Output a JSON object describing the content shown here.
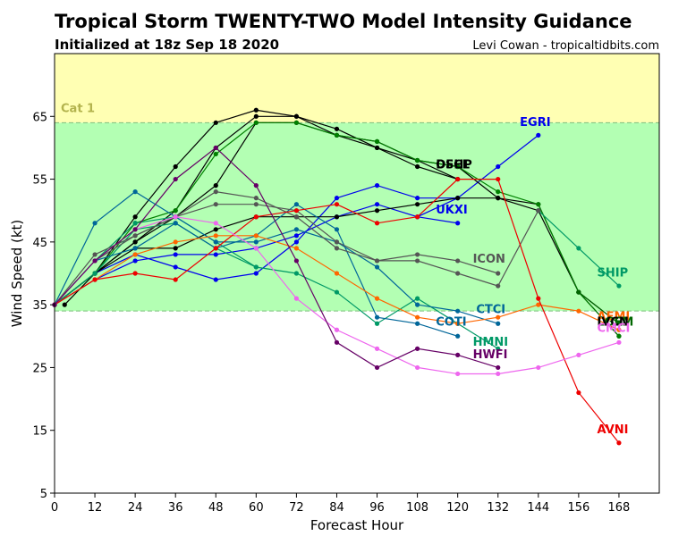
{
  "title": "Tropical Storm TWENTY-TWO Model Intensity Guidance",
  "subtitle": "Initialized at 18z Sep 18 2020",
  "credit": "Levi Cowan - tropicaltidbits.com",
  "chart_data": {
    "type": "line",
    "xlabel": "Forecast Hour",
    "ylabel": "Wind Speed (kt)",
    "xlim": [
      0,
      180
    ],
    "ylim": [
      5,
      75
    ],
    "xticks": [
      0,
      12,
      24,
      36,
      48,
      60,
      72,
      84,
      96,
      108,
      120,
      132,
      144,
      156,
      168
    ],
    "yticks": [
      5,
      15,
      25,
      35,
      45,
      55,
      65
    ],
    "grid": false,
    "bands": [
      {
        "label": "",
        "from": 34,
        "to": 64,
        "color": "#b3ffb3"
      },
      {
        "label": "Cat 1",
        "from": 64,
        "to": 75,
        "color": "#ffffb3"
      }
    ],
    "band_label_color": "#b3b34d",
    "threshold_color": "#7fbf7f",
    "series": [
      {
        "name": "EGRI",
        "color": "#0000ee",
        "label": "EGRI",
        "points": [
          [
            0,
            35
          ],
          [
            12,
            39
          ],
          [
            24,
            42
          ],
          [
            36,
            43
          ],
          [
            48,
            43
          ],
          [
            60,
            44
          ],
          [
            72,
            46
          ],
          [
            84,
            49
          ],
          [
            96,
            51
          ],
          [
            108,
            49
          ],
          [
            120,
            52
          ],
          [
            132,
            57
          ],
          [
            144,
            62
          ]
        ]
      },
      {
        "name": "UKXI",
        "color": "#0000ee",
        "label": "UKXI",
        "points": [
          [
            0,
            35
          ],
          [
            12,
            40
          ],
          [
            24,
            43
          ],
          [
            36,
            41
          ],
          [
            48,
            39
          ],
          [
            60,
            40
          ],
          [
            72,
            45
          ],
          [
            84,
            52
          ],
          [
            96,
            54
          ],
          [
            108,
            52
          ],
          [
            120,
            52
          ]
        ]
      },
      {
        "name": "",
        "color": "#0000ee",
        "label": "",
        "points": [
          [
            108,
            49
          ],
          [
            120,
            48
          ]
        ]
      },
      {
        "name": "OFCL",
        "color": "#000000",
        "label": "OFCL",
        "points": [
          [
            0,
            35
          ],
          [
            12,
            40
          ],
          [
            24,
            45
          ],
          [
            36,
            50
          ],
          [
            48,
            60
          ],
          [
            60,
            65
          ],
          [
            72,
            65
          ],
          [
            84,
            62
          ],
          [
            96,
            60
          ],
          [
            108,
            58
          ],
          [
            120,
            55
          ]
        ]
      },
      {
        "name": "",
        "color": "#000000",
        "label": "",
        "points": [
          [
            0,
            35
          ],
          [
            12,
            40
          ],
          [
            24,
            49
          ],
          [
            36,
            57
          ],
          [
            48,
            64
          ],
          [
            60,
            66
          ],
          [
            72,
            65
          ],
          [
            84,
            63
          ],
          [
            96,
            60
          ],
          [
            108,
            57
          ],
          [
            120,
            55
          ]
        ]
      },
      {
        "name": "",
        "color": "#000000",
        "label": "",
        "points": [
          [
            3,
            35
          ],
          [
            12,
            40
          ],
          [
            24,
            45
          ],
          [
            36,
            49
          ],
          [
            48,
            54
          ],
          [
            60,
            64
          ],
          [
            72,
            64
          ],
          [
            84,
            62
          ],
          [
            96,
            61
          ],
          [
            108,
            58
          ],
          [
            120,
            57
          ],
          [
            132,
            52
          ],
          [
            144,
            50
          ],
          [
            156,
            37
          ],
          [
            168,
            32
          ]
        ]
      },
      {
        "name": "",
        "color": "#000000",
        "label": "",
        "points": [
          [
            0,
            35
          ],
          [
            12,
            40
          ],
          [
            24,
            44
          ],
          [
            36,
            44
          ],
          [
            48,
            47
          ],
          [
            60,
            49
          ],
          [
            72,
            49
          ],
          [
            84,
            49
          ],
          [
            96,
            50
          ],
          [
            108,
            51
          ],
          [
            120,
            52
          ],
          [
            132,
            52
          ],
          [
            144,
            51
          ],
          [
            156,
            37
          ],
          [
            168,
            30
          ]
        ]
      },
      {
        "name": "",
        "color": "#008000",
        "label": "",
        "points": [
          [
            0,
            35
          ],
          [
            12,
            40
          ],
          [
            24,
            48
          ],
          [
            36,
            50
          ],
          [
            48,
            59
          ],
          [
            60,
            64
          ],
          [
            72,
            64
          ],
          [
            84,
            62
          ],
          [
            96,
            61
          ],
          [
            108,
            58
          ],
          [
            120,
            57
          ],
          [
            132,
            53
          ],
          [
            144,
            51
          ],
          [
            156,
            37
          ],
          [
            168,
            30
          ]
        ]
      },
      {
        "name": "SHIP",
        "color": "#009966",
        "label": "SHIP",
        "points": [
          [
            144,
            50
          ],
          [
            156,
            44
          ],
          [
            168,
            38
          ]
        ]
      },
      {
        "name": "LGEM",
        "color": "#006600",
        "label": "LGEM",
        "points": [
          [
            156,
            37
          ],
          [
            168,
            32
          ]
        ]
      },
      {
        "name": "HMNI",
        "color": "#009966",
        "label": "HMNI",
        "points": [
          [
            0,
            35
          ],
          [
            12,
            40
          ],
          [
            24,
            47
          ],
          [
            36,
            48
          ],
          [
            48,
            44
          ],
          [
            60,
            41
          ],
          [
            72,
            40
          ],
          [
            84,
            37
          ],
          [
            96,
            32
          ],
          [
            108,
            36
          ],
          [
            120,
            32
          ],
          [
            132,
            28
          ]
        ]
      },
      {
        "name": "",
        "color": "#009966",
        "label": "",
        "points": [
          [
            0,
            35
          ],
          [
            12,
            42
          ],
          [
            24,
            48
          ],
          [
            36,
            49
          ],
          [
            48,
            45
          ],
          [
            60,
            41
          ]
        ]
      },
      {
        "name": "CTCI",
        "color": "#006699",
        "label": "CTCI",
        "points": [
          [
            0,
            35
          ],
          [
            12,
            48
          ],
          [
            24,
            53
          ],
          [
            36,
            49
          ],
          [
            48,
            45
          ],
          [
            60,
            45
          ],
          [
            72,
            47
          ],
          [
            84,
            45
          ],
          [
            96,
            41
          ],
          [
            108,
            35
          ],
          [
            120,
            34
          ],
          [
            132,
            32
          ]
        ]
      },
      {
        "name": "COTI",
        "color": "#006699",
        "label": "COTI",
        "points": [
          [
            0,
            35
          ],
          [
            12,
            42
          ],
          [
            24,
            44
          ],
          [
            36,
            48
          ],
          [
            48,
            44
          ],
          [
            60,
            46
          ],
          [
            72,
            51
          ],
          [
            84,
            47
          ],
          [
            96,
            33
          ],
          [
            108,
            32
          ],
          [
            120,
            30
          ]
        ]
      },
      {
        "name": "ICON",
        "color": "#555555",
        "label": "ICON",
        "points": [
          [
            0,
            35
          ],
          [
            12,
            43
          ],
          [
            24,
            46
          ],
          [
            36,
            49
          ],
          [
            48,
            53
          ],
          [
            60,
            52
          ],
          [
            72,
            49
          ],
          [
            84,
            44
          ],
          [
            96,
            42
          ],
          [
            108,
            43
          ],
          [
            120,
            42
          ],
          [
            132,
            40
          ]
        ]
      },
      {
        "name": "",
        "color": "#555555",
        "label": "",
        "points": [
          [
            0,
            35
          ],
          [
            12,
            42
          ],
          [
            24,
            46
          ],
          [
            36,
            49
          ],
          [
            48,
            51
          ],
          [
            60,
            51
          ],
          [
            72,
            50
          ],
          [
            84,
            45
          ],
          [
            96,
            42
          ],
          [
            108,
            42
          ],
          [
            120,
            40
          ],
          [
            132,
            38
          ],
          [
            144,
            50
          ]
        ]
      },
      {
        "name": "AEMI",
        "color": "#ff6600",
        "label": "AEMI",
        "points": [
          [
            0,
            35
          ],
          [
            12,
            39
          ],
          [
            24,
            43
          ],
          [
            36,
            45
          ],
          [
            48,
            46
          ],
          [
            60,
            46
          ],
          [
            72,
            44
          ],
          [
            84,
            40
          ],
          [
            96,
            36
          ],
          [
            108,
            33
          ],
          [
            120,
            32
          ],
          [
            132,
            33
          ],
          [
            144,
            35
          ],
          [
            156,
            34
          ],
          [
            168,
            31
          ]
        ]
      },
      {
        "name": "AVNI",
        "color": "#ee0000",
        "label": "AVNI",
        "points": [
          [
            0,
            35
          ],
          [
            12,
            39
          ],
          [
            24,
            40
          ],
          [
            36,
            39
          ],
          [
            48,
            44
          ],
          [
            60,
            49
          ],
          [
            72,
            50
          ],
          [
            84,
            51
          ],
          [
            96,
            48
          ],
          [
            108,
            49
          ],
          [
            120,
            55
          ],
          [
            132,
            55
          ],
          [
            144,
            36
          ],
          [
            156,
            21
          ],
          [
            168,
            13
          ]
        ]
      },
      {
        "name": "CMCI",
        "color": "#ee66ee",
        "label": "CMCI",
        "points": [
          [
            0,
            35
          ],
          [
            12,
            42
          ],
          [
            24,
            47
          ],
          [
            36,
            49
          ],
          [
            48,
            48
          ],
          [
            60,
            44
          ],
          [
            72,
            36
          ],
          [
            84,
            31
          ],
          [
            96,
            28
          ],
          [
            108,
            25
          ],
          [
            120,
            24
          ],
          [
            132,
            24
          ],
          [
            144,
            25
          ],
          [
            156,
            27
          ],
          [
            168,
            29
          ]
        ]
      },
      {
        "name": "HWFI",
        "color": "#660066",
        "label": "HWFI",
        "points": [
          [
            0,
            35
          ],
          [
            12,
            42
          ],
          [
            24,
            47
          ],
          [
            36,
            55
          ],
          [
            48,
            60
          ],
          [
            60,
            54
          ],
          [
            72,
            42
          ],
          [
            84,
            29
          ],
          [
            96,
            25
          ],
          [
            108,
            28
          ],
          [
            120,
            27
          ],
          [
            132,
            25
          ]
        ]
      }
    ],
    "labels": [
      {
        "text": "EGRI",
        "color": "#0000ee",
        "x": 138.5,
        "y": 63.5
      },
      {
        "text": "OFCL",
        "color": "#000000",
        "x": 113.5,
        "y": 56.7
      },
      {
        "text": "DSHP",
        "color": "#000000",
        "x": 113.5,
        "y": 56.7
      },
      {
        "text": "UKXI",
        "color": "#0000ee",
        "x": 113.5,
        "y": 49.5
      },
      {
        "text": "ICON",
        "color": "#555555",
        "x": 124.5,
        "y": 41.7
      },
      {
        "text": "SHIP",
        "color": "#009966",
        "x": 161.5,
        "y": 39.5
      },
      {
        "text": "CTCI",
        "color": "#006699",
        "x": 125.5,
        "y": 33.7
      },
      {
        "text": "AEMI",
        "color": "#ff6600",
        "x": 161.5,
        "y": 32.5
      },
      {
        "text": "COTI",
        "color": "#006699",
        "x": 113.5,
        "y": 31.7
      },
      {
        "text": "LGEM",
        "color": "#006600",
        "x": 161.5,
        "y": 31.7
      },
      {
        "text": "IVCN",
        "color": "#000000",
        "x": 161.5,
        "y": 31.7
      },
      {
        "text": "CMCI",
        "color": "#ee66ee",
        "x": 161.5,
        "y": 30.7
      },
      {
        "text": "HMNI",
        "color": "#009966",
        "x": 124.5,
        "y": 28.5
      },
      {
        "text": "HWFI",
        "color": "#660066",
        "x": 124.5,
        "y": 26.5
      },
      {
        "text": "AVNI",
        "color": "#ee0000",
        "x": 161.5,
        "y": 14.5
      }
    ]
  }
}
